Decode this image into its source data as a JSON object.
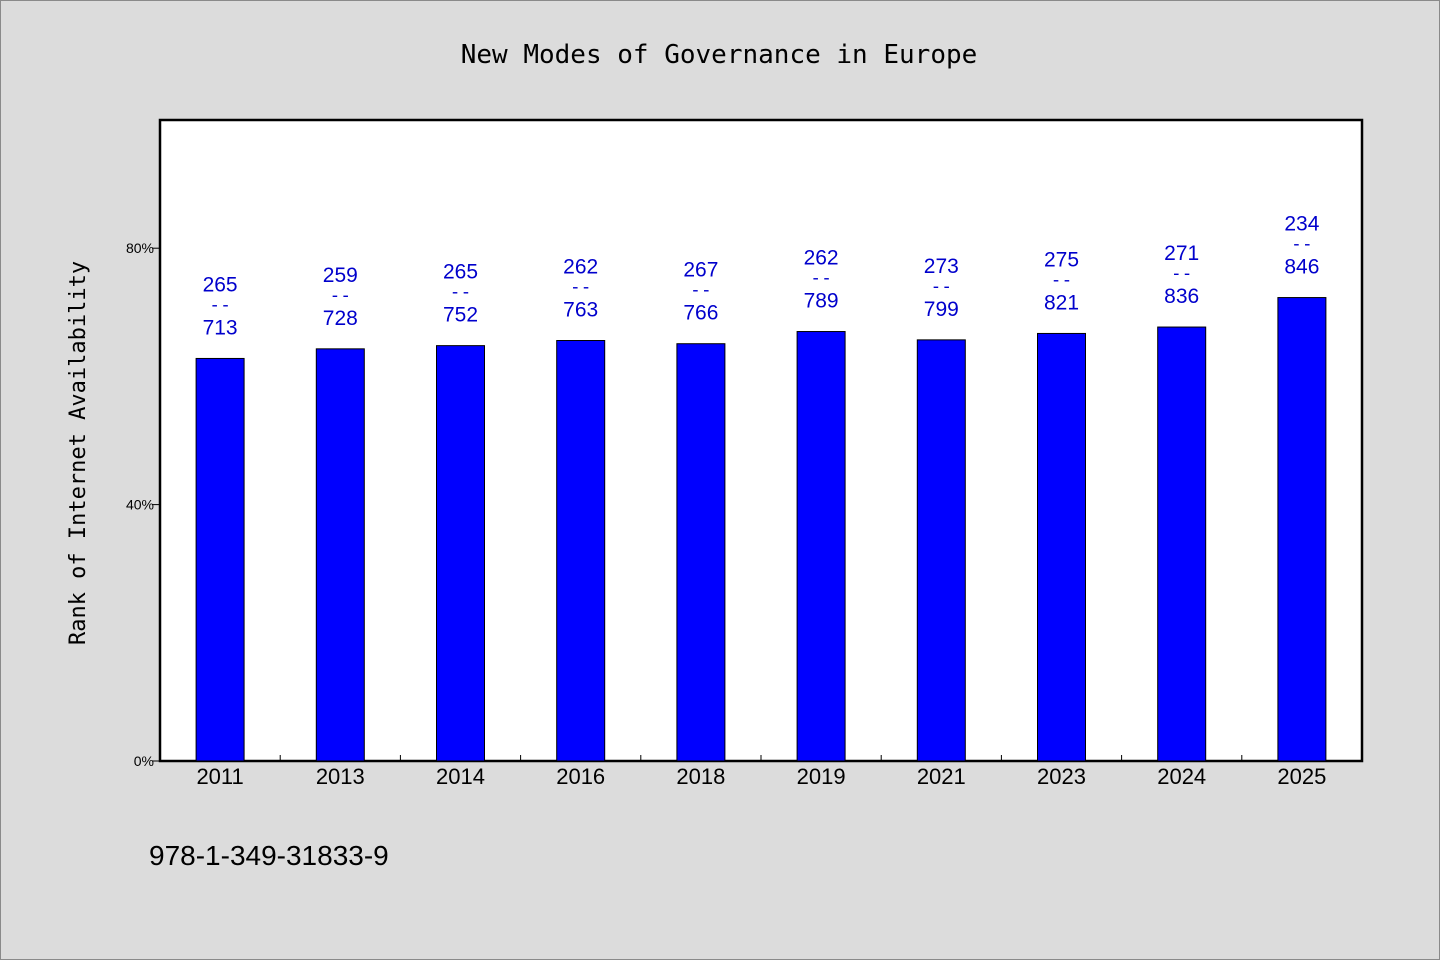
{
  "chart_data": {
    "type": "bar",
    "title": "New Modes of Governance in Europe",
    "xlabel": "",
    "ylabel": "Rank of Internet Availability",
    "ylim": [
      0,
      100
    ],
    "yticks": [
      {
        "value": 0,
        "label": "0%"
      },
      {
        "value": 40,
        "label": "40%"
      },
      {
        "value": 80,
        "label": "80%"
      }
    ],
    "grid": false,
    "legend": "none",
    "categories": [
      "2011",
      "2013",
      "2014",
      "2016",
      "2018",
      "2019",
      "2021",
      "2023",
      "2024",
      "2025"
    ],
    "values": [
      62.8,
      64.3,
      64.8,
      65.6,
      65.1,
      67.0,
      65.7,
      66.7,
      67.7,
      72.3
    ],
    "labels_top": [
      "265",
      "259",
      "265",
      "262",
      "267",
      "262",
      "273",
      "275",
      "271",
      "234"
    ],
    "labels_sep": "--",
    "labels_bottom": [
      "713",
      "728",
      "752",
      "763",
      "766",
      "789",
      "799",
      "821",
      "836",
      "846"
    ],
    "bar_color": "#0000ff",
    "label_color": "#0000cc"
  },
  "footer_text": "978-1-349-31833-9"
}
